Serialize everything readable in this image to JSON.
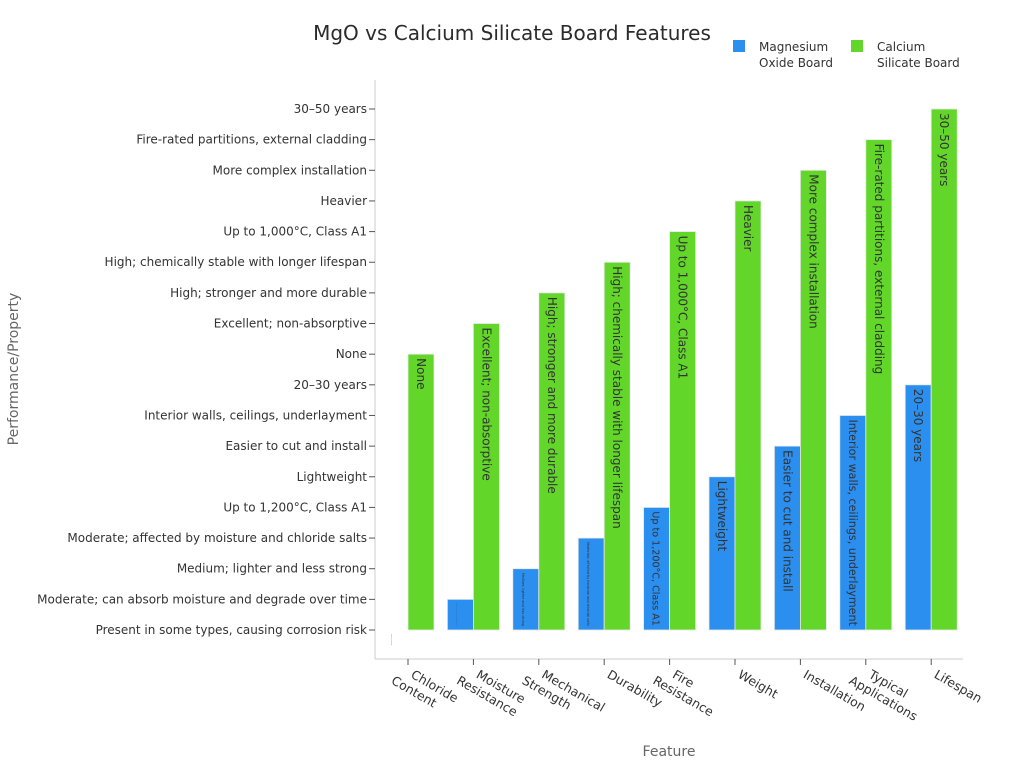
{
  "chart_data": {
    "type": "bar",
    "title": "MgO vs Calcium Silicate Board Features",
    "xlabel": "Feature",
    "ylabel": "Performance/Property",
    "legend_position": "top-right",
    "colors": {
      "mgo": "#2b8ff0",
      "cs": "#63d62a",
      "axis": "#cccccc"
    },
    "categories": [
      "Chloride Content",
      "Moisture Resistance",
      "Mechanical Strength",
      "Durability",
      "Fire Resistance",
      "Weight",
      "Installation",
      "Typical Applications",
      "Lifespan"
    ],
    "y_categories": [
      "Present in some types, causing corrosion risk",
      "Moderate; can absorb moisture and degrade over time",
      "Medium; lighter and less strong",
      "Moderate; affected by moisture and chloride salts",
      "Up to 1,200°C, Class A1",
      "Lightweight",
      "Easier to cut and install",
      "Interior walls, ceilings, underlayment",
      "20–30 years",
      "None",
      "Excellent; non-absorptive",
      "High; stronger and more durable",
      "High; chemically stable with longer lifespan",
      "Up to 1,000°C, Class A1",
      "Heavier",
      "More complex installation",
      "Fire-rated partitions, external cladding",
      "30–50 years"
    ],
    "series": [
      {
        "name": "Magnesium Oxide Board",
        "values": [
          "Present in some types, causing corrosion risk",
          "Moderate; can absorb moisture and degrade over time",
          "Medium; lighter and less strong",
          "Moderate; affected by moisture and chloride salts",
          "Up to 1,200°C, Class A1",
          "Lightweight",
          "Easier to cut and install",
          "Interior walls, ceilings, underlayment",
          "20–30 years"
        ]
      },
      {
        "name": "Calcium Silicate Board",
        "values": [
          "None",
          "Excellent; non-absorptive",
          "High; stronger and more durable",
          "High; chemically stable with longer lifespan",
          "Up to 1,000°C, Class A1",
          "Heavier",
          "More complex installation",
          "Fire-rated partitions, external cladding",
          "30–50 years"
        ]
      }
    ]
  }
}
